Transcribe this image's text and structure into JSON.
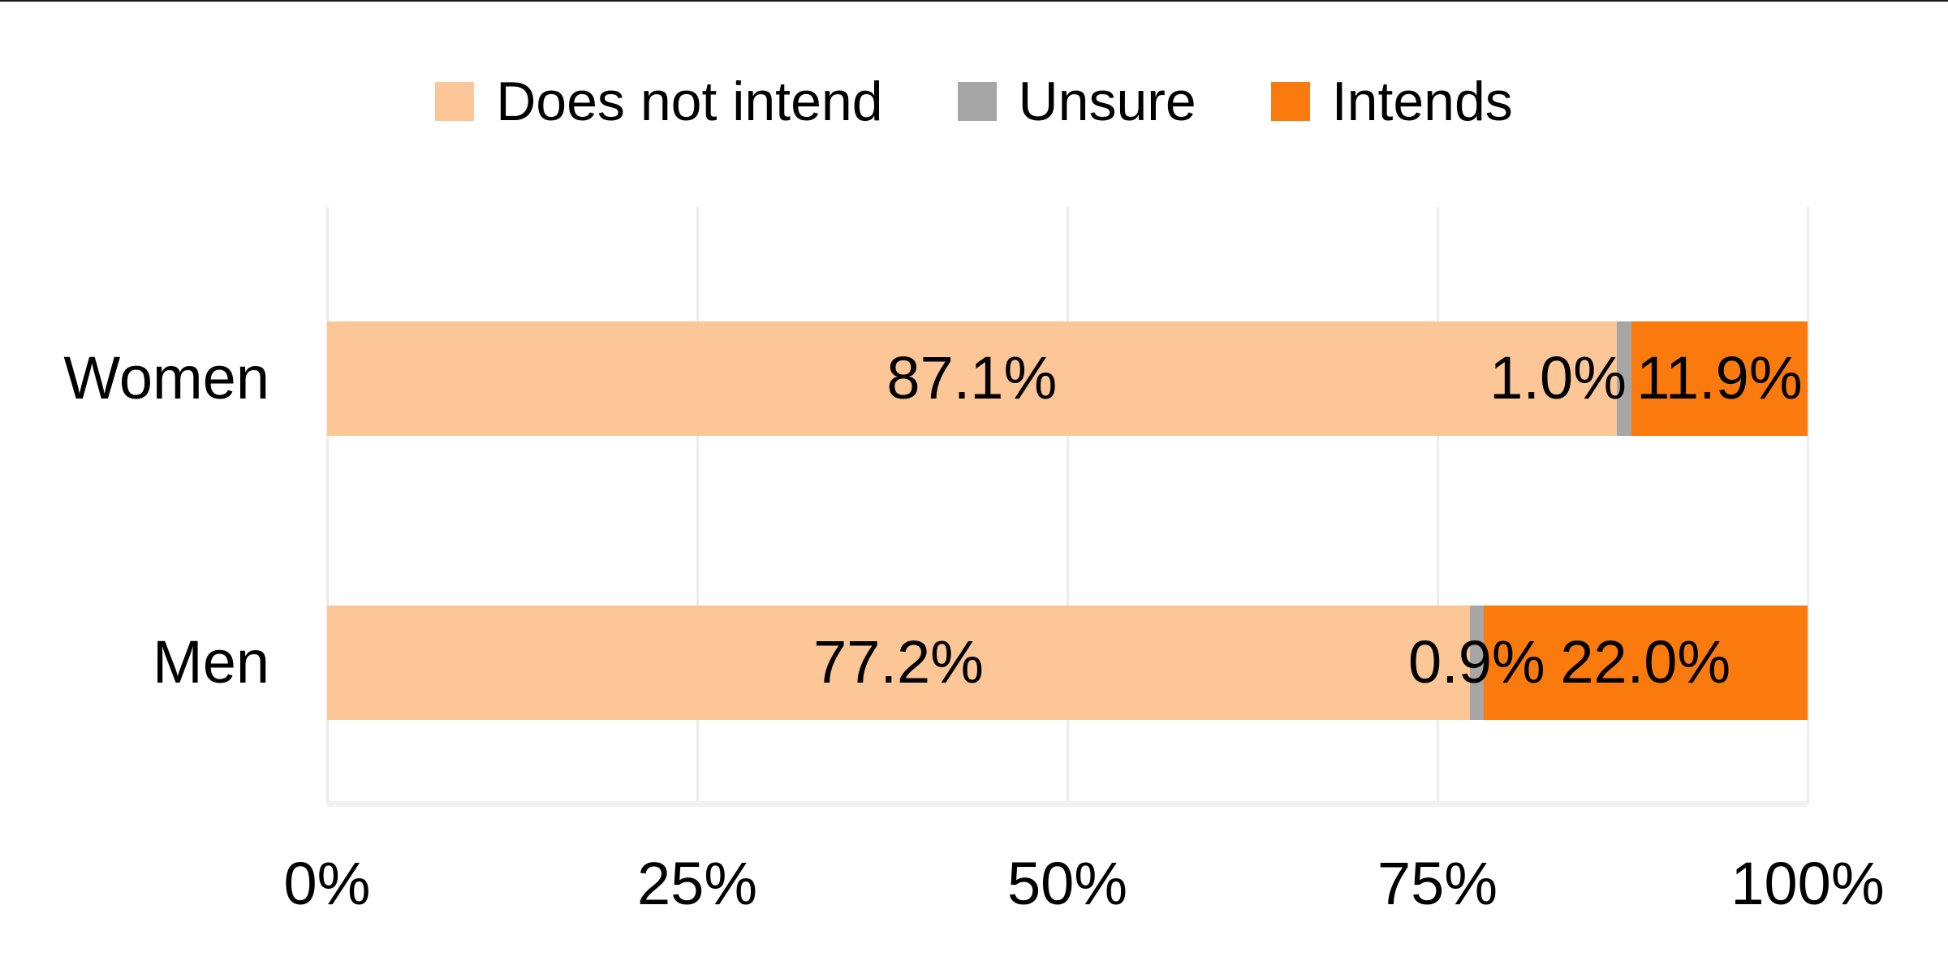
{
  "chart_data": {
    "type": "bar",
    "orientation": "horizontal",
    "stacked": true,
    "title": "",
    "xlabel": "",
    "ylabel": "",
    "unit": "%",
    "categories": [
      "Women",
      "Men"
    ],
    "series": [
      {
        "name": "Does not intend",
        "color": "#FDC697",
        "values": [
          87.1,
          77.2
        ],
        "labels": [
          "87.1%",
          "77.2%"
        ],
        "label_align": [
          "center",
          "center"
        ]
      },
      {
        "name": "Unsure",
        "color": "#A6A6A6",
        "values": [
          1.0,
          0.9
        ],
        "labels": [
          "1.0%",
          "0.9%"
        ],
        "label_align": [
          "end",
          "center"
        ]
      },
      {
        "name": "Intends",
        "color": "#FB7A0D",
        "values": [
          11.9,
          22.0
        ],
        "labels": [
          "11.9%",
          "22.0%"
        ],
        "label_align": [
          "center",
          "center"
        ]
      }
    ],
    "x_axis": {
      "min": 0,
      "max": 100,
      "ticks": [
        {
          "value": 0,
          "label": "0%"
        },
        {
          "value": 25,
          "label": "25%"
        },
        {
          "value": 50,
          "label": "50%"
        },
        {
          "value": 75,
          "label": "75%"
        },
        {
          "value": 100,
          "label": "100%"
        }
      ]
    },
    "legend_position": "top",
    "grid": "vertical",
    "colors": {
      "grid": "#ECECEC",
      "axis_line": "#F2F2F2",
      "text": "#000000",
      "background": "#FFFFFF",
      "top_border": "#1A1A1A"
    }
  }
}
